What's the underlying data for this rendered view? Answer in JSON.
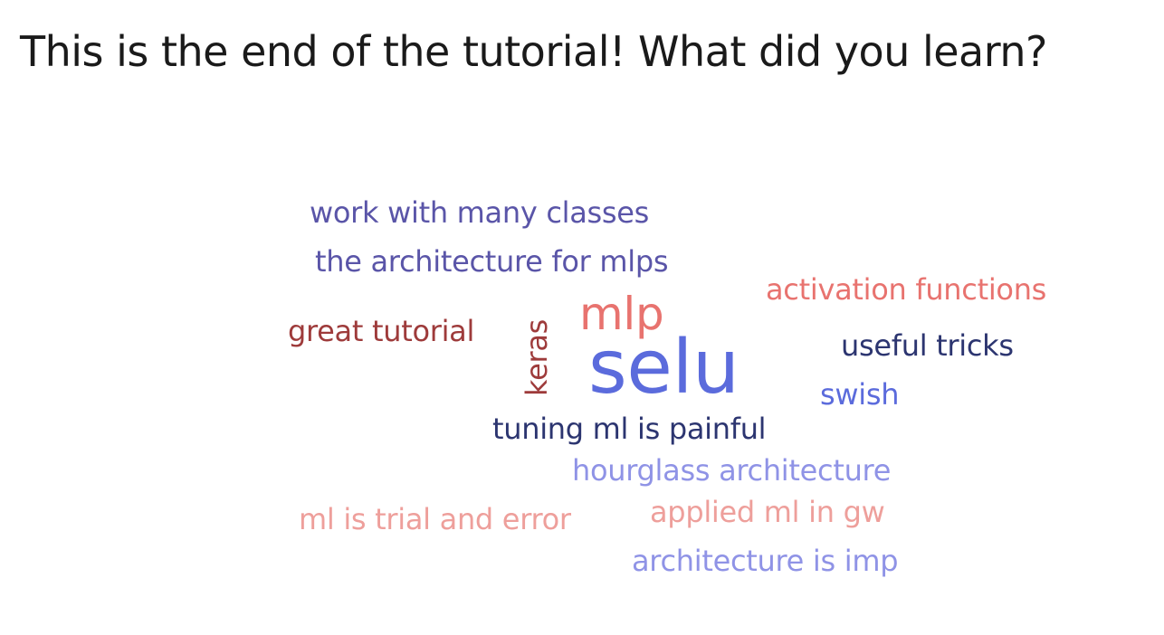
{
  "slide": {
    "title": "This is the end of the tutorial! What did you learn?"
  },
  "word_cloud": [
    {
      "id": "work",
      "text": "work with many classes",
      "color": "#5a55a8"
    },
    {
      "id": "arch-mlps",
      "text": "the architecture for mlps",
      "color": "#5a55a8"
    },
    {
      "id": "activation",
      "text": "activation functions",
      "color": "#e8736f"
    },
    {
      "id": "mlp",
      "text": "mlp",
      "color": "#e8736f"
    },
    {
      "id": "great",
      "text": "great tutorial",
      "color": "#9e3b3b"
    },
    {
      "id": "keras",
      "text": "keras",
      "color": "#9e3b3b"
    },
    {
      "id": "selu",
      "text": "selu",
      "color": "#5b6bdc"
    },
    {
      "id": "useful",
      "text": "useful tricks",
      "color": "#2c3570"
    },
    {
      "id": "swish",
      "text": "swish",
      "color": "#5b6bdc"
    },
    {
      "id": "tuning",
      "text": "tuning ml is painful",
      "color": "#2c3570"
    },
    {
      "id": "hourglass",
      "text": "hourglass architecture",
      "color": "#8f93e6"
    },
    {
      "id": "trial",
      "text": "ml is trial and error",
      "color": "#ee9f9b"
    },
    {
      "id": "applied",
      "text": "applied ml in gw",
      "color": "#ee9f9b"
    },
    {
      "id": "imp",
      "text": "architecture is imp",
      "color": "#8f93e6"
    }
  ]
}
